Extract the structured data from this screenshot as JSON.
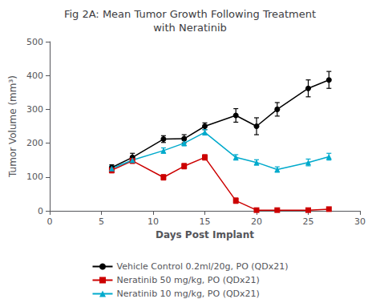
{
  "chart_data": {
    "type": "line",
    "title": "Fig 2A: Mean Tumor Growth Following Treatment\nwith Neratinib",
    "xlabel": "Days Post Implant",
    "ylabel": "Tumor Volume (mm³)",
    "xlim": [
      0,
      30
    ],
    "ylim": [
      0,
      500
    ],
    "xticks": [
      0,
      5,
      10,
      15,
      20,
      25,
      30
    ],
    "yticks": [
      0,
      100,
      200,
      300,
      400,
      500
    ],
    "grid": false,
    "legend": "bottom",
    "x": [
      6,
      8,
      11,
      13,
      15,
      18,
      20,
      22,
      25,
      27
    ],
    "series": [
      {
        "name": "Vehicle Control 0.2ml/20g, PO (QDx21)",
        "color": "#000000",
        "marker": "circle",
        "values": [
          128,
          158,
          212,
          213,
          250,
          282,
          250,
          300,
          362,
          387
        ],
        "yerr": [
          8,
          12,
          10,
          12,
          10,
          20,
          25,
          20,
          25,
          25
        ]
      },
      {
        "name": "Neratinib 50 mg/kg, PO (QDx21)",
        "color": "#cc0000",
        "marker": "square",
        "values": [
          120,
          148,
          99,
          132,
          158,
          30,
          2,
          2,
          2,
          5
        ],
        "yerr": [
          8,
          8,
          8,
          8,
          8,
          8,
          2,
          2,
          2,
          3
        ]
      },
      {
        "name": "Neratinib 10 mg/kg, PO (QDx21)",
        "color": "#00aacc",
        "marker": "triangle",
        "values": [
          125,
          150,
          178,
          200,
          232,
          158,
          143,
          122,
          143,
          160
        ],
        "yerr": [
          8,
          8,
          8,
          8,
          8,
          8,
          8,
          8,
          10,
          10
        ]
      }
    ]
  }
}
